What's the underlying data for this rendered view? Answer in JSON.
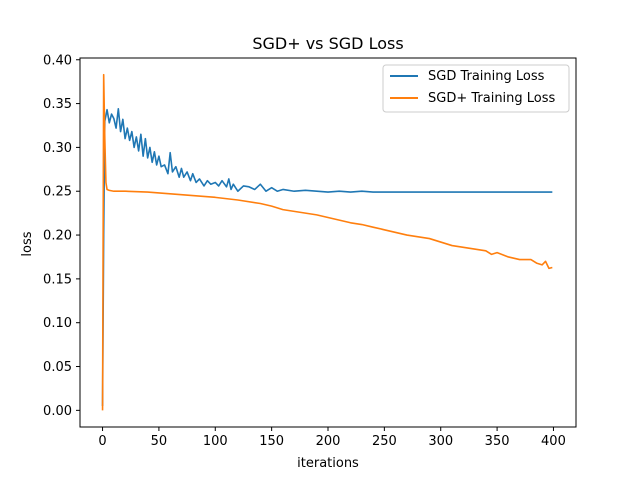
{
  "chart_data": {
    "type": "line",
    "title": "SGD+ vs SGD Loss",
    "xlabel": "iterations",
    "ylabel": "loss",
    "xlim": [
      -20,
      420
    ],
    "ylim": [
      -0.019,
      0.402
    ],
    "xticks": [
      0,
      50,
      100,
      150,
      200,
      250,
      300,
      350,
      400
    ],
    "xtick_labels": [
      "0",
      "50",
      "100",
      "150",
      "200",
      "250",
      "300",
      "350",
      "400"
    ],
    "yticks": [
      0.0,
      0.05,
      0.1,
      0.15,
      0.2,
      0.25,
      0.3,
      0.35,
      0.4
    ],
    "ytick_labels": [
      "0.00",
      "0.05",
      "0.10",
      "0.15",
      "0.20",
      "0.25",
      "0.30",
      "0.35",
      "0.40"
    ],
    "grid": false,
    "legend_position": "top-right",
    "series": [
      {
        "name": "SGD Training Loss",
        "color": "#1f77b4",
        "x": [
          0,
          1,
          2,
          4,
          6,
          8,
          10,
          12,
          14,
          16,
          18,
          20,
          22,
          24,
          26,
          28,
          30,
          32,
          34,
          36,
          38,
          40,
          42,
          44,
          46,
          48,
          50,
          52,
          55,
          58,
          60,
          62,
          65,
          68,
          70,
          72,
          75,
          78,
          80,
          83,
          86,
          90,
          93,
          96,
          100,
          103,
          106,
          110,
          112,
          114,
          116,
          120,
          125,
          130,
          135,
          140,
          145,
          150,
          155,
          160,
          170,
          180,
          190,
          200,
          210,
          220,
          230,
          240,
          250,
          260,
          270,
          280,
          290,
          300,
          310,
          320,
          330,
          340,
          350,
          360,
          370,
          380,
          390,
          399
        ],
        "y": [
          0.005,
          0.2,
          0.33,
          0.343,
          0.328,
          0.338,
          0.333,
          0.322,
          0.344,
          0.318,
          0.332,
          0.31,
          0.322,
          0.308,
          0.318,
          0.3,
          0.312,
          0.296,
          0.315,
          0.29,
          0.31,
          0.288,
          0.3,
          0.283,
          0.295,
          0.28,
          0.29,
          0.278,
          0.28,
          0.27,
          0.294,
          0.272,
          0.278,
          0.266,
          0.276,
          0.266,
          0.272,
          0.262,
          0.27,
          0.26,
          0.264,
          0.256,
          0.262,
          0.258,
          0.26,
          0.256,
          0.262,
          0.255,
          0.264,
          0.252,
          0.258,
          0.25,
          0.256,
          0.255,
          0.252,
          0.258,
          0.25,
          0.254,
          0.25,
          0.252,
          0.25,
          0.251,
          0.25,
          0.249,
          0.25,
          0.249,
          0.25,
          0.249,
          0.249,
          0.249,
          0.249,
          0.249,
          0.249,
          0.249,
          0.249,
          0.249,
          0.249,
          0.249,
          0.249,
          0.249,
          0.249,
          0.249,
          0.249,
          0.249
        ]
      },
      {
        "name": "SGD+ Training Loss",
        "color": "#ff7f0e",
        "x": [
          0,
          1,
          2,
          3,
          4,
          6,
          10,
          20,
          40,
          60,
          80,
          100,
          120,
          140,
          150,
          160,
          170,
          180,
          190,
          200,
          210,
          220,
          230,
          240,
          250,
          260,
          270,
          280,
          290,
          300,
          310,
          320,
          330,
          340,
          345,
          350,
          360,
          370,
          380,
          385,
          390,
          393,
          396,
          399
        ],
        "y": [
          0.0,
          0.383,
          0.31,
          0.26,
          0.252,
          0.251,
          0.25,
          0.25,
          0.249,
          0.247,
          0.245,
          0.243,
          0.24,
          0.236,
          0.233,
          0.229,
          0.227,
          0.225,
          0.223,
          0.22,
          0.217,
          0.214,
          0.212,
          0.209,
          0.206,
          0.203,
          0.2,
          0.198,
          0.196,
          0.192,
          0.188,
          0.186,
          0.184,
          0.182,
          0.178,
          0.18,
          0.175,
          0.172,
          0.172,
          0.168,
          0.166,
          0.17,
          0.162,
          0.163
        ]
      }
    ]
  }
}
